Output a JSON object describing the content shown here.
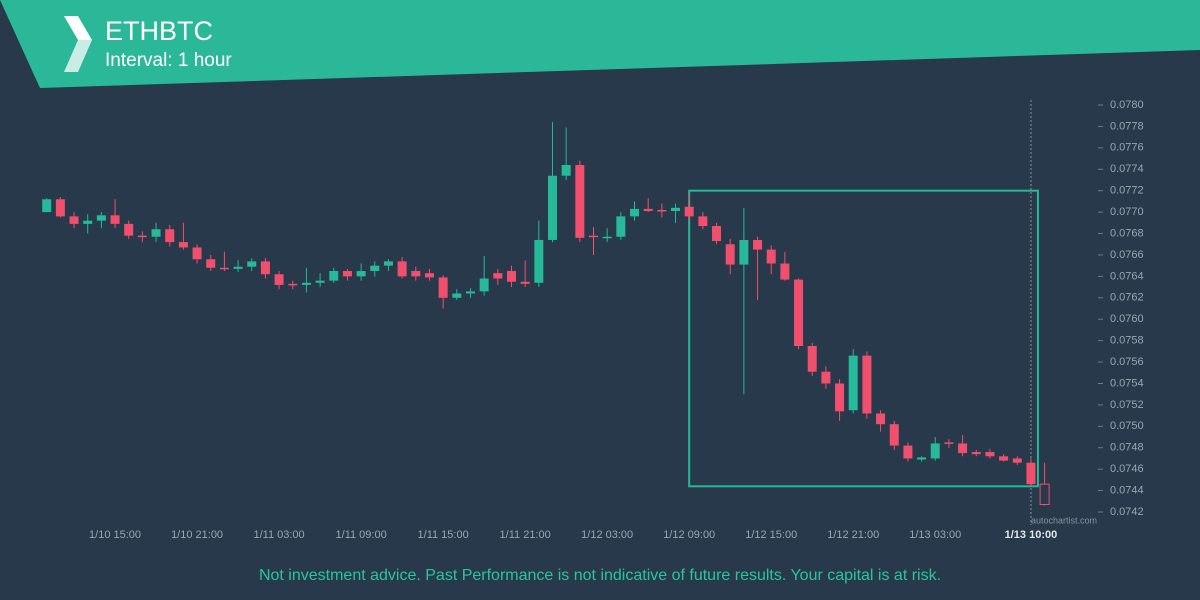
{
  "header": {
    "symbol": "ETHBTC",
    "interval": "Interval: 1 hour"
  },
  "footer": {
    "disclaimer": "Not investment advice. Past Performance is not indicative of future results. Your capital is at risk.",
    "watermark": "autochartist.com"
  },
  "chart_data": {
    "type": "candlestick",
    "categories": [
      null,
      null,
      null,
      null,
      null,
      "1/10 15:00",
      null,
      null,
      null,
      null,
      null,
      "1/10 21:00",
      null,
      null,
      null,
      null,
      null,
      "1/11 03:00",
      null,
      null,
      null,
      null,
      null,
      "1/11 09:00",
      null,
      null,
      null,
      null,
      null,
      "1/11 15:00",
      null,
      null,
      null,
      null,
      null,
      "1/11 21:00",
      null,
      null,
      null,
      null,
      null,
      "1/12 03:00",
      null,
      null,
      null,
      null,
      null,
      "1/12 09:00",
      null,
      null,
      null,
      null,
      null,
      "1/12 15:00",
      null,
      null,
      null,
      null,
      null,
      "1/12 21:00",
      null,
      null,
      null,
      null,
      null,
      "1/13 03:00",
      null,
      null,
      null,
      null,
      null,
      null,
      "1/13 10:00",
      null
    ],
    "open": [
      0.077,
      0.07712,
      0.07696,
      0.07689,
      0.07692,
      0.07697,
      0.07689,
      0.07678,
      0.07677,
      0.07684,
      0.07672,
      0.07667,
      0.07656,
      0.07648,
      0.07647,
      0.07649,
      0.07654,
      0.07642,
      0.07633,
      0.07632,
      0.07634,
      0.07636,
      0.07645,
      0.0764,
      0.07645,
      0.0765,
      0.07654,
      0.07645,
      0.07643,
      0.07639,
      0.0762,
      0.07624,
      0.07626,
      0.07643,
      0.07645,
      0.07635,
      0.07634,
      0.07674,
      0.07734,
      0.07744,
      0.07678,
      0.07676,
      0.07677,
      0.07696,
      0.07703,
      0.07702,
      0.07701,
      0.07705,
      0.07696,
      0.07687,
      0.0767,
      0.07651,
      0.07674,
      0.07665,
      0.07652,
      0.07637,
      0.07575,
      0.07551,
      0.0754,
      0.07515,
      0.07566,
      0.07512,
      0.07502,
      0.07482,
      0.07469,
      0.0747,
      0.07485,
      0.07484,
      0.07476,
      0.07476,
      0.07472,
      0.0747,
      0.07466,
      0.07446
    ],
    "high": [
      0.07713,
      0.07714,
      0.077,
      0.07698,
      0.077,
      0.07712,
      0.07692,
      0.07682,
      0.0769,
      0.07688,
      0.0769,
      0.0767,
      0.0766,
      0.07663,
      0.07655,
      0.07657,
      0.07657,
      0.07645,
      0.07636,
      0.07648,
      0.07643,
      0.07648,
      0.07647,
      0.07652,
      0.07654,
      0.07656,
      0.07658,
      0.07649,
      0.07647,
      0.07641,
      0.07628,
      0.07629,
      0.07659,
      0.07647,
      0.0765,
      0.07655,
      0.07692,
      0.07784,
      0.07779,
      0.07748,
      0.07686,
      0.07685,
      0.077,
      0.0771,
      0.07713,
      0.07708,
      0.07708,
      0.07717,
      0.077,
      0.0769,
      0.07675,
      0.07704,
      0.07677,
      0.07669,
      0.07663,
      0.07638,
      0.07578,
      0.07556,
      0.07544,
      0.07572,
      0.0757,
      0.07515,
      0.07505,
      0.07485,
      0.07472,
      0.0749,
      0.07488,
      0.07492,
      0.07478,
      0.07479,
      0.07474,
      0.07472,
      0.0747,
      0.07466
    ],
    "low": [
      0.077,
      0.07695,
      0.07685,
      0.0768,
      0.07685,
      0.07685,
      0.07675,
      0.07672,
      0.07672,
      0.07668,
      0.07665,
      0.07652,
      0.07645,
      0.07645,
      0.07644,
      0.07645,
      0.07638,
      0.07628,
      0.07628,
      0.07625,
      0.0763,
      0.07634,
      0.07636,
      0.07636,
      0.0764,
      0.07645,
      0.07638,
      0.07636,
      0.07636,
      0.0761,
      0.07618,
      0.0762,
      0.07622,
      0.07632,
      0.0763,
      0.0763,
      0.0763,
      0.07672,
      0.0773,
      0.07672,
      0.0766,
      0.07672,
      0.07674,
      0.07692,
      0.077,
      0.07695,
      0.0769,
      0.07692,
      0.07684,
      0.0767,
      0.07642,
      0.0753,
      0.07618,
      0.07642,
      0.07636,
      0.07572,
      0.07547,
      0.07535,
      0.07505,
      0.07512,
      0.07507,
      0.07495,
      0.07478,
      0.07467,
      0.07467,
      0.07468,
      0.0748,
      0.07472,
      0.07472,
      0.0747,
      0.07467,
      0.07464,
      0.07444,
      0.07426
    ],
    "close": [
      0.07712,
      0.07696,
      0.07689,
      0.07692,
      0.07697,
      0.07689,
      0.07678,
      0.07677,
      0.07684,
      0.07672,
      0.07667,
      0.07656,
      0.07648,
      0.07647,
      0.07649,
      0.07654,
      0.07642,
      0.07632,
      0.07632,
      0.07634,
      0.07636,
      0.07645,
      0.0764,
      0.07645,
      0.0765,
      0.07654,
      0.0764,
      0.0764,
      0.07639,
      0.0762,
      0.07624,
      0.07626,
      0.07638,
      0.07638,
      0.07635,
      0.07633,
      0.07674,
      0.07734,
      0.07744,
      0.07676,
      0.07677,
      0.07677,
      0.07696,
      0.07703,
      0.07701,
      0.07701,
      0.07704,
      0.07696,
      0.07687,
      0.07673,
      0.07651,
      0.07674,
      0.07665,
      0.07652,
      0.07637,
      0.07575,
      0.07551,
      0.0754,
      0.07514,
      0.07566,
      0.07512,
      0.07502,
      0.07482,
      0.0747,
      0.07471,
      0.07484,
      0.07484,
      0.07475,
      0.07474,
      0.07472,
      0.07468,
      0.07466,
      0.07446,
      0.07427
    ],
    "up_color": "#26b99a",
    "down_color": "#f0506e",
    "last_candle_hollow": true,
    "pattern_range": [
      0.07444,
      0.0772
    ],
    "pattern_color": "#26b99a",
    "ylim": [
      0.0742,
      0.078
    ],
    "yticks": [
      0.0742,
      0.0744,
      0.0746,
      0.0748,
      {
        "value": 0.075,
        "label": "0.0750"
      },
      0.0752,
      0.0754,
      0.0756,
      0.0758,
      {
        "value": 0.076,
        "label": "0.0760"
      },
      0.0762,
      0.0764,
      0.0766,
      0.0768,
      {
        "value": 0.077,
        "label": "0.0770"
      },
      0.0772,
      0.0774,
      0.0776,
      0.0778,
      {
        "value": 0.078,
        "label": "0.0780"
      }
    ]
  }
}
